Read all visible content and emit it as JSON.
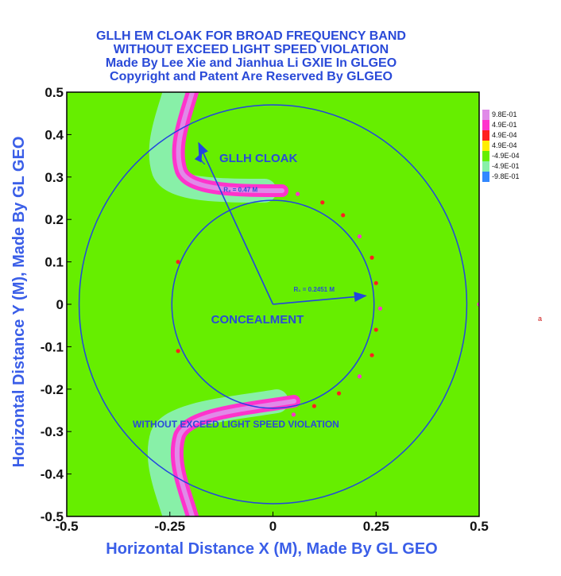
{
  "chart_data": {
    "type": "heatmap",
    "title_lines": [
      "GLLH EM CLOAK FOR BROAD FREQUENCY BAND",
      "WITHOUT EXCEED LIGHT SPEED VIOLATION",
      "Made By Lee Xie and Jianhua Li GXIE In GLGEO",
      "Copyright and Patent Are Reserved By GLGEO"
    ],
    "xlabel": "Horizontal Distance X (M), Made By GL GEO",
    "ylabel": "Horizontal Distance Y (M), Made By GL GEO",
    "xlim": [
      -0.5,
      0.5
    ],
    "ylim": [
      -0.5,
      0.5
    ],
    "x_ticks": [
      "-0.5",
      "-0.25",
      "0",
      "0.25",
      "0.5"
    ],
    "y_ticks": [
      "0.5",
      "0.4",
      "0.3",
      "0.2",
      "0.1",
      "0",
      "-0.1",
      "-0.2",
      "-0.3",
      "-0.4",
      "-0.5"
    ],
    "x_tick_values": [
      -0.5,
      -0.25,
      0,
      0.25,
      0.5
    ],
    "y_tick_values": [
      0.5,
      0.4,
      0.3,
      0.2,
      0.1,
      0,
      -0.1,
      -0.2,
      -0.3,
      -0.4,
      -0.5
    ],
    "legend": [
      {
        "label": "9.8E-01",
        "color": "#e08ae8"
      },
      {
        "label": "4.9E-01",
        "color": "#ff33cc"
      },
      {
        "label": "4.9E-04",
        "color": "#ff2020"
      },
      {
        "label": "4.9E-04",
        "color": "#ffee00"
      },
      {
        "label": "-4.9E-04",
        "color": "#66ee00"
      },
      {
        "label": "-4.9E-01",
        "color": "#88f0a8"
      },
      {
        "label": "-9.8E-01",
        "color": "#3388ff"
      }
    ],
    "field_color": "#66ee00",
    "circles": [
      {
        "name": "outer-boundary",
        "cx": 0,
        "cy": 0,
        "r": 0.47,
        "color": "#2244e0"
      },
      {
        "name": "inner-boundary",
        "cx": 0,
        "cy": 0,
        "r": 0.2451,
        "color": "#2244e0"
      }
    ],
    "annotations": {
      "cloak_label": "GLLH CLOAK",
      "concealment_label": "CONCEALMENT",
      "violation_label": "WITHOUT EXCEED LIGHT SPEED VIOLATION",
      "r1_label": "R₁ = 0.2451 M",
      "r2_label": "R₂ = 0.47 M",
      "edge_marker": "a"
    }
  }
}
